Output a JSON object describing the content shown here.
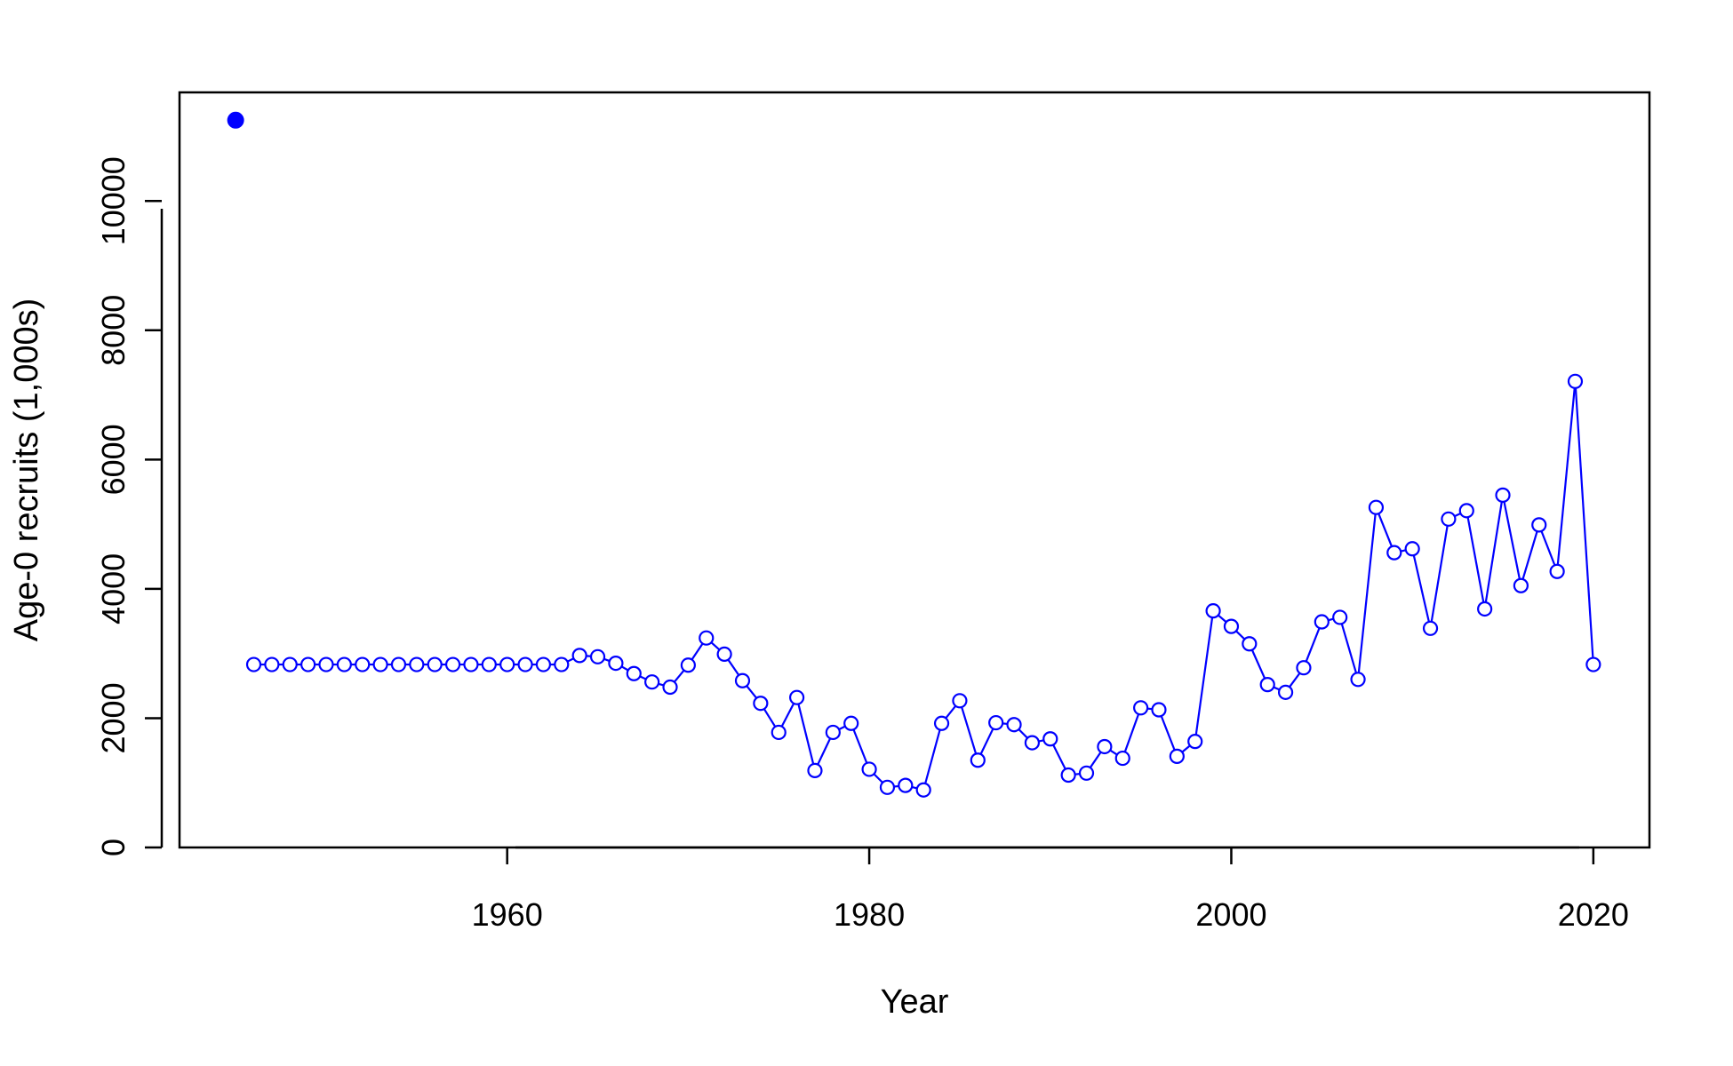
{
  "chart_data": {
    "type": "line",
    "title": "",
    "xlabel": "Year",
    "ylabel": "Age-0 recruits (1,000s)",
    "xlim": [
      1941.9,
      2023.1
    ],
    "ylim": [
      0,
      11680
    ],
    "x_ticks": [
      "1960",
      "1980",
      "2000",
      "2020"
    ],
    "y_ticks": [
      "0",
      "2000",
      "4000",
      "6000",
      "8000",
      "10000"
    ],
    "grid": false,
    "legend": "none",
    "color": "#0000ff",
    "virgin_point": {
      "year": 1945,
      "value": 11250
    },
    "series": [
      {
        "x": [
          1946,
          1947,
          1948,
          1949,
          1950,
          1951,
          1952,
          1953,
          1954,
          1955,
          1956,
          1957,
          1958,
          1959,
          1960,
          1961,
          1962,
          1963,
          1964,
          1965,
          1966,
          1967,
          1968,
          1969,
          1970,
          1971,
          1972,
          1973,
          1974,
          1975,
          1976,
          1977,
          1978,
          1979,
          1980,
          1981,
          1982,
          1983,
          1984,
          1985,
          1986,
          1987,
          1988,
          1989,
          1990,
          1991,
          1992,
          1993,
          1994,
          1995,
          1996,
          1997,
          1998,
          1999,
          2000,
          2001,
          2002,
          2003,
          2004,
          2005,
          2006,
          2007,
          2008,
          2009,
          2010,
          2011,
          2012,
          2013,
          2014,
          2015,
          2016,
          2017,
          2018,
          2019,
          2020
        ],
        "values": [
          2830,
          2830,
          2830,
          2830,
          2830,
          2830,
          2830,
          2830,
          2830,
          2830,
          2830,
          2830,
          2830,
          2830,
          2830,
          2830,
          2830,
          2830,
          2970,
          2950,
          2850,
          2690,
          2560,
          2480,
          2820,
          3240,
          2990,
          2580,
          2230,
          1780,
          2320,
          1190,
          1780,
          1920,
          1210,
          930,
          960,
          890,
          1920,
          2270,
          1350,
          1930,
          1900,
          1620,
          1680,
          1120,
          1150,
          1560,
          1380,
          2160,
          2130,
          1410,
          1640,
          3660,
          3420,
          3150,
          2520,
          2400,
          2780,
          3490,
          3560,
          2600,
          5260,
          4560,
          4620,
          3390,
          5080,
          5210,
          3690,
          5450,
          4050,
          4990,
          4270,
          7210,
          2830
        ]
      }
    ]
  }
}
